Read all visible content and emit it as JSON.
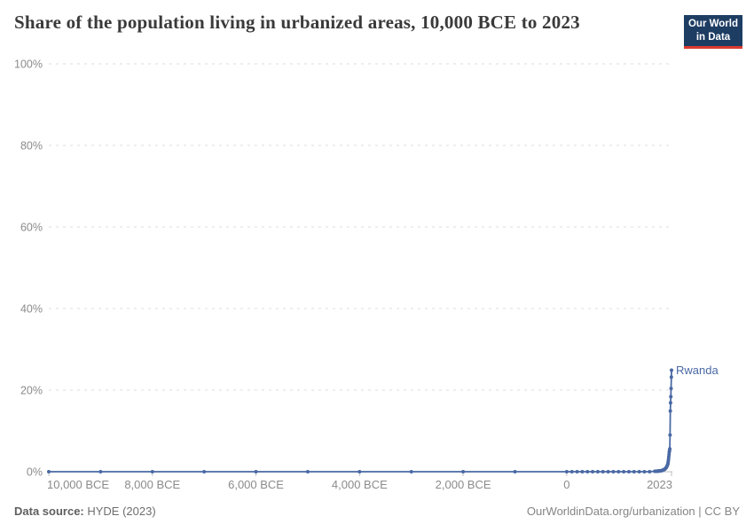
{
  "header": {
    "title": "Share of the population living in urbanized areas, 10,000 BCE to 2023",
    "logo": {
      "line1": "Our World",
      "line2": "in Data"
    }
  },
  "footer": {
    "source_label": "Data source:",
    "source_value": " HYDE (2023)",
    "credit": "OurWorldinData.org/urbanization | CC BY"
  },
  "colors": {
    "line": "#4a69a4",
    "series_label": "#4a69a4",
    "grid": "#dedede",
    "axis_line": "#c0c0c0",
    "tick_label": "#8b8b8b",
    "logo_bg": "#1d3d63",
    "logo_accent": "#dc3b2e"
  },
  "chart_data": {
    "type": "line",
    "title": "Share of the population living in urbanized areas, 10,000 BCE to 2023",
    "entity": "Rwanda",
    "xlabel": "",
    "ylabel": "",
    "xlim": [
      -10000,
      2023
    ],
    "ylim": [
      0,
      100
    ],
    "grid": "horizontal-dashed",
    "legend": "end-of-line-label",
    "y_ticks": [
      {
        "value": 0,
        "label": "0%"
      },
      {
        "value": 20,
        "label": "20%"
      },
      {
        "value": 40,
        "label": "40%"
      },
      {
        "value": 60,
        "label": "60%"
      },
      {
        "value": 80,
        "label": "80%"
      },
      {
        "value": 100,
        "label": "100%"
      }
    ],
    "x_ticks": [
      {
        "value": -10000,
        "label": "10,000 BCE"
      },
      {
        "value": -8000,
        "label": "8,000 BCE"
      },
      {
        "value": -6000,
        "label": "6,000 BCE"
      },
      {
        "value": -4000,
        "label": "4,000 BCE"
      },
      {
        "value": -2000,
        "label": "2,000 BCE"
      },
      {
        "value": 0,
        "label": "0"
      },
      {
        "value": 2023,
        "label": "2023"
      }
    ],
    "series": [
      {
        "name": "Rwanda",
        "color": "#4a69a4",
        "points": [
          [
            -10000,
            0
          ],
          [
            -9000,
            0
          ],
          [
            -8000,
            0
          ],
          [
            -7000,
            0
          ],
          [
            -6000,
            0
          ],
          [
            -5000,
            0
          ],
          [
            -4000,
            0
          ],
          [
            -3000,
            0
          ],
          [
            -2000,
            0
          ],
          [
            -1000,
            0
          ],
          [
            0,
            0
          ],
          [
            100,
            0
          ],
          [
            200,
            0
          ],
          [
            300,
            0
          ],
          [
            400,
            0
          ],
          [
            500,
            0
          ],
          [
            600,
            0
          ],
          [
            700,
            0
          ],
          [
            800,
            0
          ],
          [
            900,
            0
          ],
          [
            1000,
            0
          ],
          [
            1100,
            0
          ],
          [
            1200,
            0
          ],
          [
            1300,
            0
          ],
          [
            1400,
            0
          ],
          [
            1500,
            0
          ],
          [
            1600,
            0
          ],
          [
            1700,
            0.1
          ],
          [
            1710,
            0.1
          ],
          [
            1720,
            0.11
          ],
          [
            1730,
            0.12
          ],
          [
            1740,
            0.13
          ],
          [
            1750,
            0.14
          ],
          [
            1760,
            0.15
          ],
          [
            1770,
            0.16
          ],
          [
            1780,
            0.17
          ],
          [
            1790,
            0.18
          ],
          [
            1800,
            0.2
          ],
          [
            1810,
            0.22
          ],
          [
            1820,
            0.25
          ],
          [
            1830,
            0.28
          ],
          [
            1840,
            0.31
          ],
          [
            1850,
            0.35
          ],
          [
            1860,
            0.4
          ],
          [
            1870,
            0.46
          ],
          [
            1880,
            0.53
          ],
          [
            1890,
            0.61
          ],
          [
            1900,
            0.7
          ],
          [
            1910,
            0.85
          ],
          [
            1920,
            1.0
          ],
          [
            1930,
            1.2
          ],
          [
            1940,
            1.5
          ],
          [
            1950,
            1.8
          ],
          [
            1955,
            2.1
          ],
          [
            1960,
            2.5
          ],
          [
            1965,
            3.0
          ],
          [
            1970,
            3.6
          ],
          [
            1975,
            4.2
          ],
          [
            1980,
            4.8
          ],
          [
            1985,
            5.2
          ],
          [
            1990,
            5.6
          ],
          [
            1995,
            9.0
          ],
          [
            2000,
            14.9
          ],
          [
            2005,
            16.9
          ],
          [
            2010,
            18.4
          ],
          [
            2015,
            20.4
          ],
          [
            2020,
            23.2
          ],
          [
            2023,
            24.9
          ]
        ]
      }
    ]
  }
}
